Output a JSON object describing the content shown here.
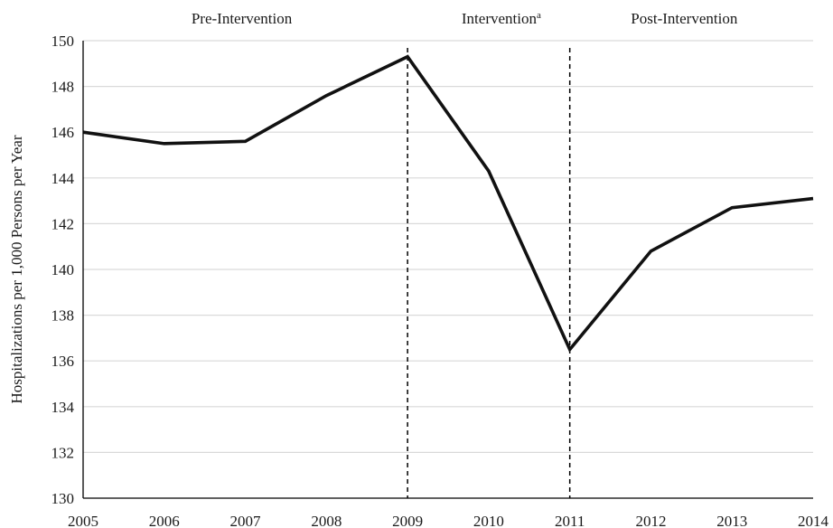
{
  "chart_data": {
    "type": "line",
    "x": [
      "2005",
      "2006",
      "2007",
      "2008",
      "2009",
      "2010",
      "2011",
      "2012",
      "2013",
      "2014"
    ],
    "series": [
      {
        "values": [
          146.0,
          145.5,
          145.6,
          147.6,
          149.3,
          144.3,
          136.5,
          140.8,
          142.7,
          143.1
        ],
        "color": "#111111"
      }
    ],
    "ylabel": "Hospitalizations per 1,000 Persons per Year",
    "xlabel": "",
    "ylim": [
      130,
      150
    ],
    "yticks": [
      130,
      132,
      134,
      136,
      138,
      140,
      142,
      144,
      146,
      148,
      150
    ],
    "grid": true,
    "period_dividers": [
      "2009",
      "2011"
    ],
    "phases": [
      {
        "label": "Pre-Intervention",
        "superscript": ""
      },
      {
        "label": "Intervention",
        "superscript": "a"
      },
      {
        "label": "Post-Intervention",
        "superscript": ""
      }
    ]
  }
}
